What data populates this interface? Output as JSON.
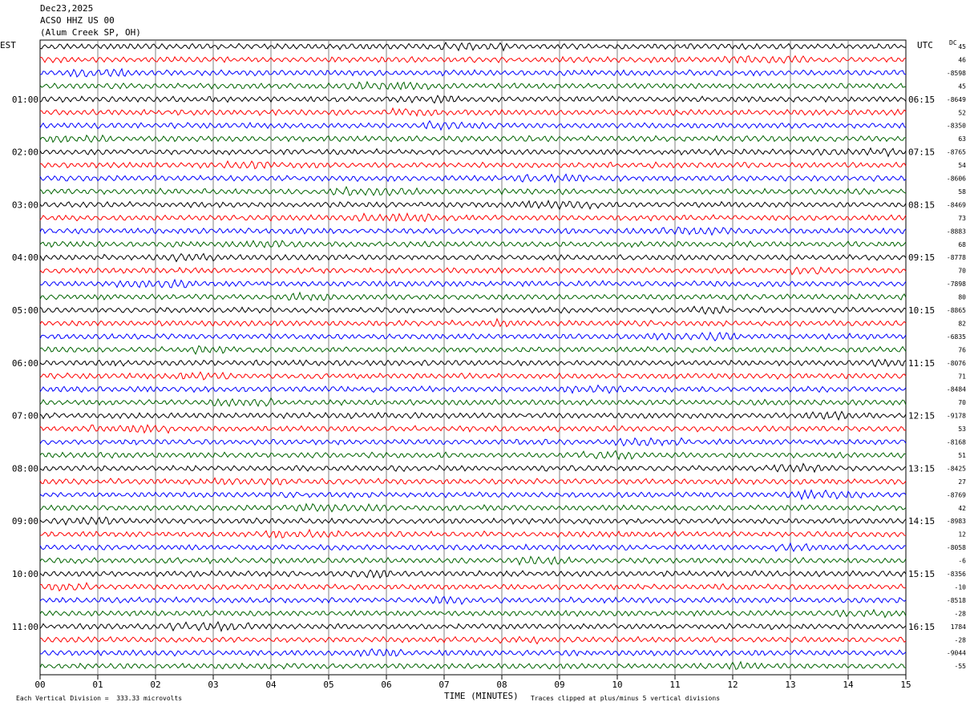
{
  "header": {
    "date": "Dec23,2025",
    "station": "ACSO HHZ US 00",
    "location": "(Alum Creek SP, OH)"
  },
  "left_tz": "EST",
  "right_tz": "UTC",
  "dc_label": "DC",
  "footer": {
    "scale": "Each Vertical Division =  333.33 microvolts",
    "xlabel": "TIME (MINUTES)",
    "clip_note": "Traces clipped at plus/minus 5 vertical divisions"
  },
  "colors": {
    "trace_cycle": [
      "#000000",
      "#ff0000",
      "#0000ff",
      "#006400"
    ],
    "grid": "#808080"
  },
  "chart_data": {
    "type": "line",
    "title": "",
    "xlabel": "TIME (MINUTES)",
    "ylabel": "",
    "xlim": [
      0,
      15
    ],
    "x_ticks": [
      "00",
      "01",
      "02",
      "03",
      "04",
      "05",
      "06",
      "07",
      "08",
      "09",
      "10",
      "11",
      "12",
      "13",
      "14",
      "15"
    ],
    "rows_per_hour": 4,
    "row_count": 48,
    "left_hour_labels": [
      "01:00",
      "02:00",
      "03:00",
      "04:00",
      "05:00",
      "06:00",
      "07:00",
      "08:00",
      "09:00",
      "10:00",
      "11:00"
    ],
    "right_hour_labels": [
      "06:15",
      "07:15",
      "08:15",
      "09:15",
      "10:15",
      "11:15",
      "12:15",
      "13:15",
      "14:15",
      "15:15",
      "16:15"
    ],
    "dc_offsets": [
      "45",
      "46",
      "-8598",
      "45",
      "-8649",
      "52",
      "-8350",
      "63",
      "-8765",
      "54",
      "-8606",
      "58",
      "-8469",
      "73",
      "-8883",
      "68",
      "-8778",
      "70",
      "-7898",
      "80",
      "-8865",
      "82",
      "-6835",
      "76",
      "-8076",
      "71",
      "-8484",
      "70",
      "-9178",
      "53",
      "-8168",
      "51",
      "-8425",
      "27",
      "-8769",
      "42",
      "-8983",
      "12",
      "-8058",
      "-6",
      "-8356",
      "-10",
      "-8518",
      "-28",
      "1784",
      "-28",
      "-9044",
      "-55"
    ],
    "grid": true,
    "legend": "none"
  }
}
